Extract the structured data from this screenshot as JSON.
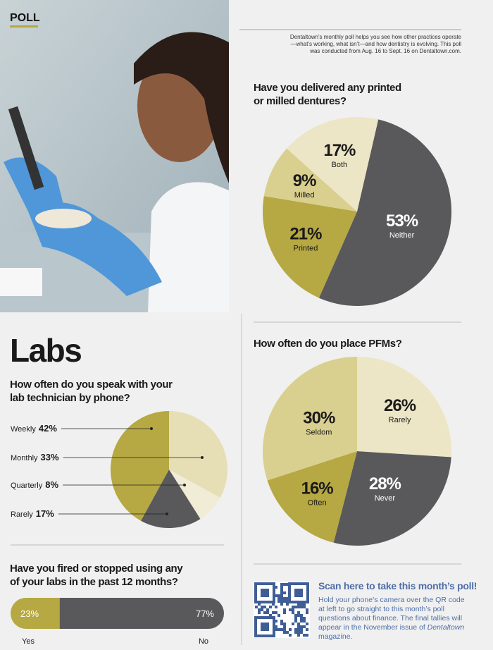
{
  "header": {
    "label": "POLL",
    "intro": "Dentaltown’s monthly poll helps you see how other practices operate—what’s working, what isn’t—and how dentistry is evolving. This poll was conducted from Aug. 16 to Sept. 16 on Dentaltown.com."
  },
  "section": {
    "title": "Labs"
  },
  "chart_data": [
    {
      "type": "pie",
      "title": "Have you delivered any printed or milled dentures?",
      "categories": [
        "Neither",
        "Printed",
        "Milled",
        "Both"
      ],
      "values": [
        53,
        21,
        9,
        17
      ],
      "value_labels": [
        "53%",
        "21%",
        "9%",
        "17%"
      ],
      "colors": [
        "#59595b",
        "#b6a842",
        "#d9cf8f",
        "#ece6c6"
      ]
    },
    {
      "type": "pie",
      "title": "How often do you place PFMs?",
      "categories": [
        "Rarely",
        "Never",
        "Often",
        "Seldom"
      ],
      "values": [
        26,
        28,
        16,
        30
      ],
      "value_labels": [
        "26%",
        "28%",
        "16%",
        "30%"
      ],
      "colors": [
        "#ece6c6",
        "#59595b",
        "#b6a842",
        "#d9cf8f"
      ]
    },
    {
      "type": "pie",
      "title": "How often do you speak with your lab technician by phone?",
      "categories": [
        "Monthly",
        "Quarterly",
        "Rarely",
        "Weekly"
      ],
      "values": [
        33,
        8,
        17,
        42
      ],
      "value_labels": [
        "33%",
        "8%",
        "17%",
        "42%"
      ],
      "colors": [
        "#e6dfb6",
        "#f1ecd6",
        "#59595b",
        "#b6a842"
      ],
      "legend": "left"
    },
    {
      "type": "bar",
      "title": "Have you fired or stopped using any of your labs in the past 12 months?",
      "categories": [
        "Yes",
        "No"
      ],
      "values": [
        23,
        77
      ],
      "value_labels": [
        "23%",
        "77%"
      ],
      "colors": [
        "#b6a842",
        "#59595b"
      ]
    }
  ],
  "qr": {
    "heading": "Scan here to take this month’s poll!",
    "text": [
      "Hold your phone’s camera over the QR code at left to go straight to this month’s poll questions about finance. The final tallies will appear in the November issue of ",
      "Dentaltown",
      " magazine."
    ]
  }
}
